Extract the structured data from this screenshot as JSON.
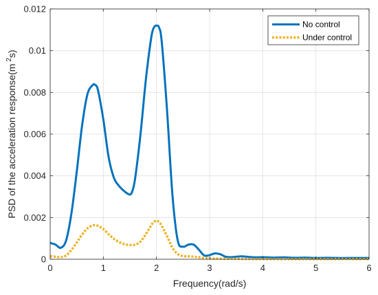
{
  "chart_data": {
    "type": "line",
    "title": "",
    "xlabel": "Frequency(rad/s)",
    "ylabel": "PSD of the acceleration response(m",
    "ylabel_sup": "2",
    "ylabel_suffix": "s)",
    "xlim": [
      0,
      6
    ],
    "ylim": [
      0,
      0.012
    ],
    "xticks": [
      0,
      1,
      2,
      3,
      4,
      5,
      6
    ],
    "xtick_labels": [
      "0",
      "1",
      "2",
      "3",
      "4",
      "5",
      "6"
    ],
    "yticks": [
      0,
      0.002,
      0.004,
      0.006,
      0.008,
      0.01,
      0.012
    ],
    "ytick_labels": [
      "0",
      "0.002",
      "0.004",
      "0.006",
      "0.008",
      "0.01",
      "0.012"
    ],
    "grid": true,
    "legend_position": "top-right",
    "series": [
      {
        "name": "No control",
        "color": "#0072BD",
        "style": "solid",
        "x": [
          0,
          0.1,
          0.2,
          0.3,
          0.4,
          0.5,
          0.6,
          0.7,
          0.8,
          0.85,
          0.9,
          1.0,
          1.1,
          1.2,
          1.3,
          1.4,
          1.5,
          1.55,
          1.6,
          1.7,
          1.8,
          1.9,
          1.95,
          2.0,
          2.05,
          2.1,
          2.2,
          2.3,
          2.4,
          2.5,
          2.6,
          2.7,
          2.8,
          2.9,
          3.0,
          3.1,
          3.2,
          3.3,
          3.4,
          3.5,
          3.6,
          3.7,
          3.8,
          3.9,
          4.0,
          4.2,
          4.4,
          4.6,
          4.8,
          5.0,
          5.2,
          5.4,
          5.6,
          5.8,
          6.0
        ],
        "y": [
          0.00078,
          0.0007,
          0.00055,
          0.0009,
          0.0022,
          0.0042,
          0.0064,
          0.0079,
          0.00835,
          0.00835,
          0.0081,
          0.0067,
          0.0049,
          0.0039,
          0.0035,
          0.00325,
          0.0031,
          0.0033,
          0.0039,
          0.006,
          0.0086,
          0.0106,
          0.0111,
          0.0112,
          0.0111,
          0.0104,
          0.0071,
          0.0031,
          0.0009,
          0.0006,
          0.0007,
          0.0007,
          0.00045,
          0.00018,
          0.0002,
          0.00028,
          0.00024,
          0.00012,
          0.0001,
          0.00012,
          0.00014,
          0.00012,
          0.0001,
          9e-05,
          0.0001,
          8e-05,
          9e-05,
          7e-05,
          8e-05,
          6e-05,
          7e-05,
          6e-05,
          6e-05,
          6e-05,
          6e-05
        ]
      },
      {
        "name": "Under control",
        "color": "#EDB120",
        "style": "dotted",
        "x": [
          0,
          0.1,
          0.2,
          0.3,
          0.4,
          0.5,
          0.6,
          0.7,
          0.8,
          0.85,
          0.9,
          1.0,
          1.1,
          1.2,
          1.3,
          1.4,
          1.5,
          1.6,
          1.7,
          1.8,
          1.9,
          1.95,
          2.0,
          2.05,
          2.1,
          2.2,
          2.3,
          2.4,
          2.5,
          2.6,
          2.7,
          2.8,
          3.0,
          3.5,
          4.0,
          5.0,
          6.0
        ],
        "y": [
          0.00015,
          0.00012,
          0.0001,
          0.00018,
          0.00045,
          0.0008,
          0.00118,
          0.00148,
          0.00162,
          0.00163,
          0.0016,
          0.00145,
          0.0012,
          0.00098,
          0.00082,
          0.00072,
          0.00068,
          0.0007,
          0.00085,
          0.0012,
          0.00162,
          0.00178,
          0.00185,
          0.00178,
          0.0016,
          0.0011,
          0.00055,
          0.00025,
          0.00015,
          0.00014,
          0.00012,
          0.0001,
          4e-05,
          2e-05,
          1e-05,
          1e-05,
          1e-05
        ]
      }
    ]
  }
}
